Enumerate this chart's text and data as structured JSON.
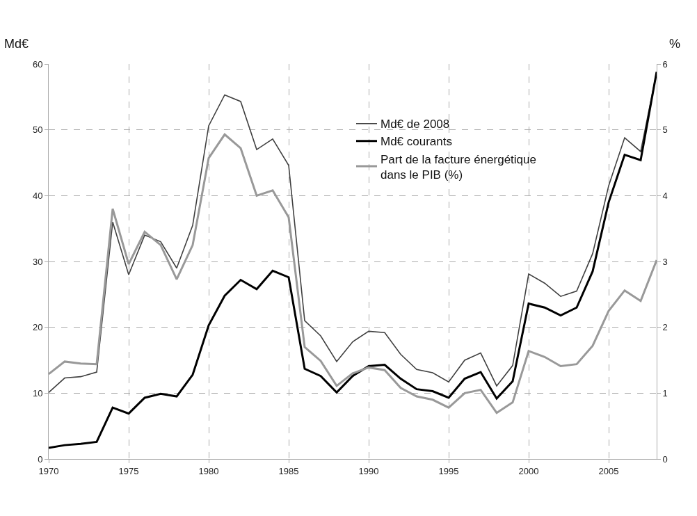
{
  "chart_data": {
    "type": "line",
    "ylabel": "Md€",
    "y2label": "%",
    "x": [
      1970,
      1971,
      1972,
      1973,
      1974,
      1975,
      1976,
      1977,
      1978,
      1979,
      1980,
      1981,
      1982,
      1983,
      1984,
      1985,
      1986,
      1987,
      1988,
      1989,
      1990,
      1991,
      1992,
      1993,
      1994,
      1995,
      1996,
      1997,
      1998,
      1999,
      2000,
      2001,
      2002,
      2003,
      2004,
      2005,
      2006,
      2007,
      2008
    ],
    "series": [
      {
        "name": "Md€ de 2008",
        "color": "#404040",
        "values": [
          10.1,
          12.3,
          12.5,
          13.2,
          36,
          28,
          34,
          33,
          29,
          35.5,
          50.6,
          55.3,
          54.3,
          47,
          48.6,
          44.6,
          21,
          18.7,
          14.8,
          17.8,
          19.4,
          19.2,
          15.9,
          13.6,
          13.1,
          11.7,
          15,
          16.1,
          11.1,
          14.2,
          28.1,
          26.7,
          24.7,
          25.5,
          31.2,
          41.5,
          48.8,
          46.7,
          58.8
        ]
      },
      {
        "name": "Md€ courants",
        "color": "#000000",
        "values": [
          1.7,
          2.1,
          2.3,
          2.6,
          7.8,
          6.9,
          9.3,
          9.9,
          9.5,
          12.8,
          20.3,
          24.8,
          27.2,
          25.8,
          28.6,
          27.6,
          13.7,
          12.6,
          10.1,
          12.6,
          14.1,
          14.3,
          12.2,
          10.6,
          10.3,
          9.3,
          12.2,
          13.2,
          9.2,
          11.8,
          23.6,
          23.0,
          21.8,
          23.0,
          28.5,
          39.0,
          46.2,
          45.4,
          58.8
        ]
      },
      {
        "name": "Part de la facture énergétique dans le PIB (%)",
        "color": "#999999",
        "axis": "y2",
        "values": [
          1.29,
          1.48,
          1.45,
          1.44,
          3.8,
          2.96,
          3.45,
          3.25,
          2.73,
          3.25,
          4.57,
          4.93,
          4.72,
          4.0,
          4.08,
          3.67,
          1.7,
          1.49,
          1.11,
          1.3,
          1.39,
          1.35,
          1.08,
          0.95,
          0.9,
          0.78,
          1.0,
          1.05,
          0.7,
          0.86,
          1.64,
          1.55,
          1.41,
          1.44,
          1.72,
          2.25,
          2.56,
          2.4,
          3.02
        ]
      }
    ],
    "xlim": [
      1970,
      2008
    ],
    "xticks": [
      1970,
      1975,
      1980,
      1985,
      1990,
      1995,
      2000,
      2005
    ],
    "ylim": [
      0,
      60
    ],
    "yticks": [
      0,
      10,
      20,
      30,
      40,
      50,
      60
    ],
    "y2lim": [
      0,
      6
    ],
    "y2ticks": [
      0,
      1,
      2,
      3,
      4,
      5,
      6
    ],
    "grid": true,
    "legend": "top",
    "marker": "none",
    "line_style": "solid"
  }
}
